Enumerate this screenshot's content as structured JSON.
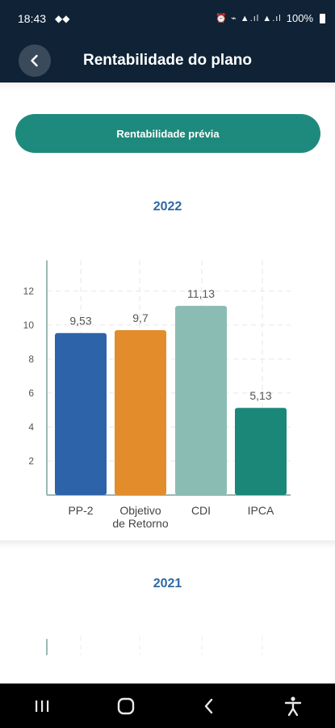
{
  "status_bar": {
    "time": "18:43",
    "notifications": "◆◆",
    "icons": "⏰ ⌁ ▲.ıl ▲.ıl",
    "battery": "100%"
  },
  "header": {
    "title": "Rentabilidade do plano"
  },
  "actions": {
    "previous_button": "Rentabilidade prévia"
  },
  "sections": [
    {
      "year": "2022"
    },
    {
      "year": "2021"
    }
  ],
  "chart_data": [
    {
      "type": "bar",
      "title": "2022",
      "categories": [
        "PP-2",
        "Objetivo\nde Retorno",
        "CDI",
        "IPCA"
      ],
      "values": [
        9.53,
        9.7,
        11.13,
        5.13
      ],
      "value_labels": [
        "9,53",
        "9,7",
        "11,13",
        "5,13"
      ],
      "colors": [
        "#2d63a8",
        "#e28c2b",
        "#8bbcb4",
        "#1b8778"
      ],
      "yticks": [
        2,
        4,
        6,
        8,
        10,
        12
      ],
      "ylim": [
        0,
        13.8
      ],
      "grid": true
    },
    {
      "type": "bar",
      "title": "2021",
      "categories": [],
      "values": [],
      "grid": true
    }
  ],
  "navbar": {
    "items": [
      "recent-apps",
      "home",
      "back",
      "accessibility"
    ]
  }
}
